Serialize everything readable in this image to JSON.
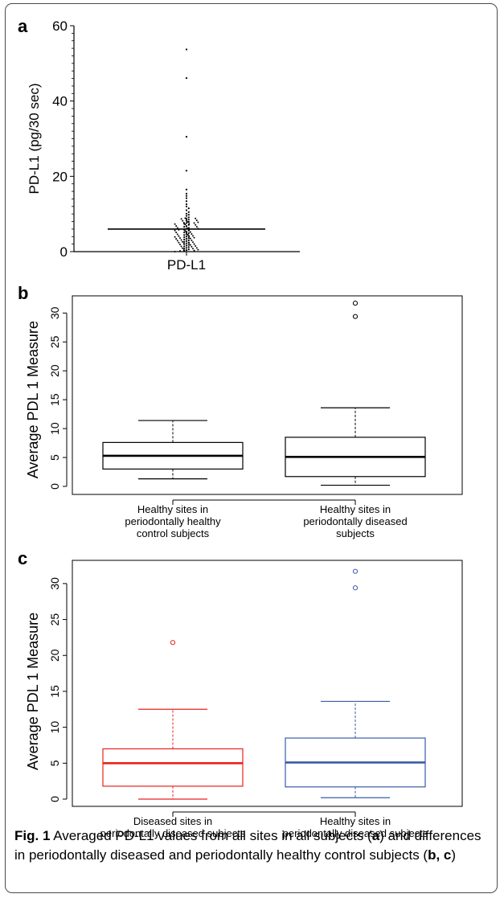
{
  "caption": {
    "label": "Fig. 1",
    "text_before_a": " Averaged PD-L1 values from all sites in all subjects (",
    "a": "a",
    "text_between": ") and differences in periodontally diseased and periodontally healthy control subjects (",
    "bc": "b, c",
    "text_end": ")"
  },
  "chart_data": [
    {
      "panel": "a",
      "type": "scatter",
      "ylabel": "PD-L1 (pg/30 sec)",
      "categories": [
        "PD-L1"
      ],
      "ylim": [
        0,
        60
      ],
      "yticks": [
        "0",
        "20",
        "40",
        "60"
      ],
      "mean_line": 6,
      "points": [
        53.7,
        46.1,
        30.5,
        21.5,
        16.5,
        15.4,
        14.8,
        14.2,
        13.4,
        12.6,
        12.0,
        11.5,
        11.0,
        10.5,
        10.1,
        9.8,
        9.5,
        9.1,
        8.8,
        8.5,
        8.2,
        7.9,
        7.6,
        7.4,
        7.1,
        6.8,
        6.6,
        6.3,
        6.1,
        5.8,
        5.6,
        5.3,
        5.1,
        4.9,
        4.6,
        4.4,
        4.2,
        4.0,
        3.8,
        3.6,
        3.4,
        3.2,
        3.0,
        2.8,
        2.6,
        2.4,
        2.2,
        2.0,
        1.8,
        1.6,
        1.4,
        1.2,
        1.0,
        0.8,
        0.6,
        0.4,
        0.2
      ],
      "point_color": "#000000"
    },
    {
      "panel": "b",
      "type": "box",
      "ylabel": "Average PDL 1 Measure",
      "ylim": [
        0,
        32
      ],
      "yticks": [
        "0",
        "5",
        "10",
        "15",
        "20",
        "25",
        "30"
      ],
      "categories": [
        [
          "Healthy sites in",
          "periodontally healthy",
          "control subjects"
        ],
        [
          "Healthy sites in",
          "periodontally diseased",
          "subjects"
        ]
      ],
      "boxes": [
        {
          "min": 1.3,
          "q1": 3.0,
          "median": 5.3,
          "q3": 7.6,
          "max": 11.4,
          "outliers": [],
          "color": "#000000"
        },
        {
          "min": 0.2,
          "q1": 1.7,
          "median": 5.1,
          "q3": 8.5,
          "max": 13.6,
          "outliers": [
            29.4,
            31.7
          ],
          "color": "#000000"
        }
      ]
    },
    {
      "panel": "c",
      "type": "box",
      "ylabel": "Average PDL 1 Measure",
      "ylim": [
        0,
        32
      ],
      "yticks": [
        "0",
        "5",
        "10",
        "15",
        "20",
        "25",
        "30"
      ],
      "categories": [
        [
          "Diseased sites in",
          "periodontally diseased subjects"
        ],
        [
          "Healthy sites in",
          "periodontally diseased subjects"
        ]
      ],
      "boxes": [
        {
          "min": 0.0,
          "q1": 1.8,
          "median": 5.0,
          "q3": 7.0,
          "max": 12.5,
          "outliers": [
            21.8
          ],
          "color": "#e8231d"
        },
        {
          "min": 0.2,
          "q1": 1.7,
          "median": 5.1,
          "q3": 8.5,
          "max": 13.6,
          "outliers": [
            29.4,
            31.7
          ],
          "color": "#3a5ba8"
        }
      ]
    }
  ]
}
